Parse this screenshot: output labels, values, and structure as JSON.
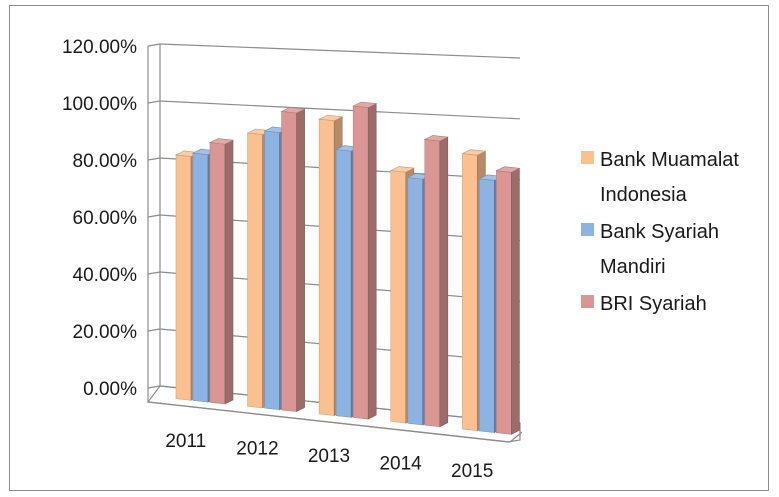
{
  "chart_data": {
    "type": "bar",
    "title": "",
    "xlabel": "",
    "ylabel": "",
    "categories": [
      "2011",
      "2012",
      "2013",
      "2014",
      "2015"
    ],
    "series": [
      {
        "name": "Bank Muamalat Indonesia",
        "color": "#fac090",
        "values": [
          85,
          94,
          100,
          84,
          91
        ]
      },
      {
        "name": "Bank Syariah Mandiri",
        "color": "#8db3e2",
        "values": [
          86,
          95,
          90,
          82,
          83
        ]
      },
      {
        "name": "BRI Syariah",
        "color": "#d99694",
        "values": [
          90,
          102,
          105,
          95,
          86
        ]
      }
    ],
    "legend_labels": [
      [
        "Bank Muamalat",
        "Indonesia"
      ],
      [
        "Bank Syariah",
        "Mandiri"
      ],
      [
        "BRI Syariah"
      ]
    ],
    "yticks": [
      "0.00%",
      "20.00%",
      "40.00%",
      "60.00%",
      "80.00%",
      "100.00%",
      "120.00%"
    ],
    "ylim": [
      0,
      120
    ],
    "grid": true,
    "legend_position": "right",
    "chart_style": "3d-clustered-column"
  }
}
